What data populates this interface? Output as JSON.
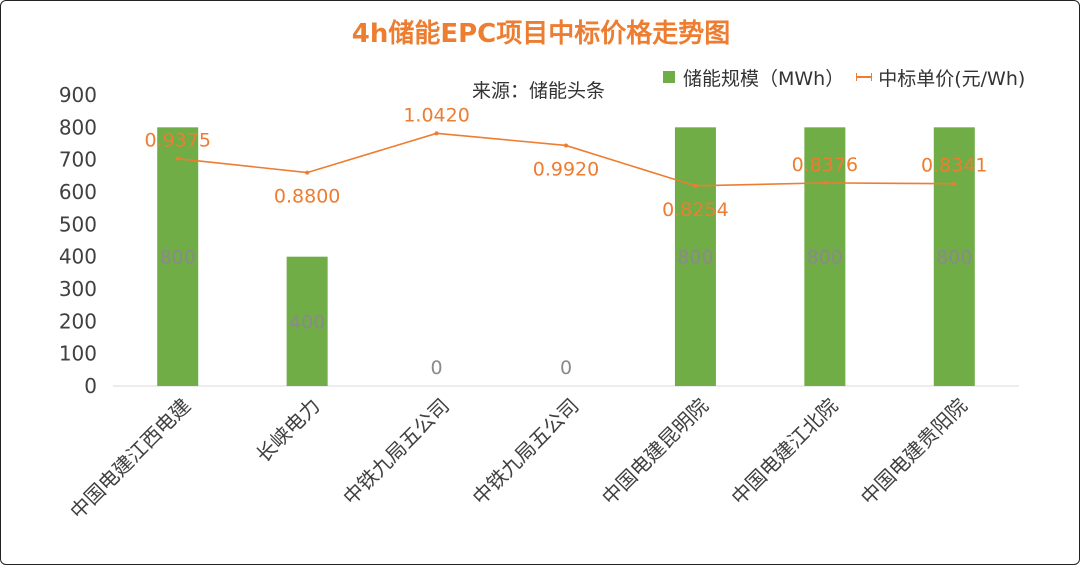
{
  "colors": {
    "bar": "#70ad47",
    "line": "#ed7d31",
    "title": "#ed7d31",
    "bar_label": "#8a8a8a",
    "axis_text": "#404040",
    "grid": "#d9d9d9"
  },
  "source_note": "来源：储能头条",
  "chart_data": {
    "type": "bar",
    "title": "4h储能EPC项目中标价格走势图",
    "categories": [
      "中国电建江西电建",
      "长峡电力",
      "中铁九局五公司",
      "中铁九局五公司",
      "中国电建昆明院",
      "中国电建江北院",
      "中国电建贵阳院"
    ],
    "series": [
      {
        "name": "储能规模（MWh）",
        "type": "bar",
        "axis": "left",
        "values": [
          800,
          400,
          0,
          0,
          800,
          800,
          800
        ],
        "labels": [
          "800",
          "400",
          "0",
          "0",
          "800",
          "800",
          "800"
        ]
      },
      {
        "name": "中标单价(元/Wh)",
        "type": "line",
        "axis": "right-hidden",
        "values": [
          0.9375,
          0.88,
          1.042,
          0.992,
          0.8254,
          0.8376,
          0.8341
        ],
        "labels": [
          "0.9375",
          "0.8800",
          "1.0420",
          "0.9920",
          "0.8254",
          "0.8376",
          "0.8341"
        ]
      }
    ],
    "y_left": {
      "ylim": [
        0,
        900
      ],
      "ticks": [
        "0",
        "100",
        "200",
        "300",
        "400",
        "500",
        "600",
        "700",
        "800",
        "900"
      ]
    },
    "y_right_hidden_range": [
      0,
      1.2
    ],
    "legend_position": "top-right",
    "grid": false
  }
}
